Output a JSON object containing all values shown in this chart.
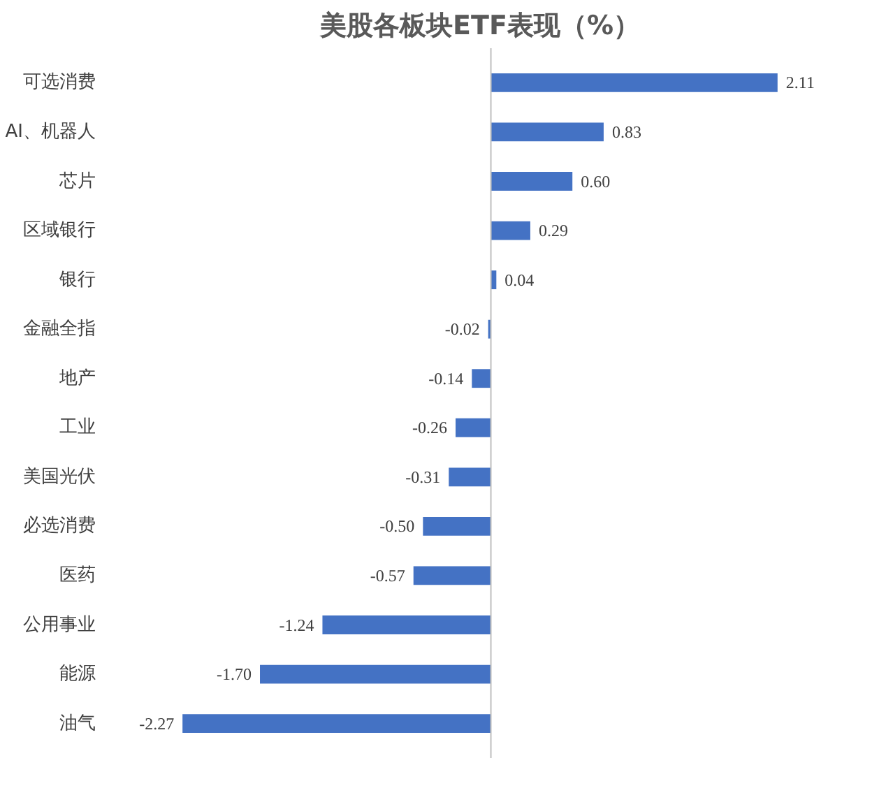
{
  "chart_data": {
    "type": "bar",
    "orientation": "horizontal",
    "title": "美股各板块ETF表现（%）",
    "categories": [
      "可选消费",
      "AI、机器人",
      "芯片",
      "区域银行",
      "银行",
      "金融全指",
      "地产",
      "工业",
      "美国光伏",
      "必选消费",
      "医药",
      "公用事业",
      "能源",
      "油气"
    ],
    "values": [
      2.11,
      0.83,
      0.6,
      0.29,
      0.04,
      -0.02,
      -0.14,
      -0.26,
      -0.31,
      -0.5,
      -0.57,
      -1.24,
      -1.7,
      -2.27
    ],
    "color": "#4472c4",
    "data_labels": true,
    "value_labels": [
      "2.11",
      "0.83",
      "0.60",
      "0.29",
      "0.04",
      "-0.02",
      "-0.14",
      "-0.26",
      "-0.31",
      "-0.50",
      "-0.57",
      "-1.24",
      "-1.70",
      "-2.27"
    ],
    "tick_labels": "y"
  }
}
